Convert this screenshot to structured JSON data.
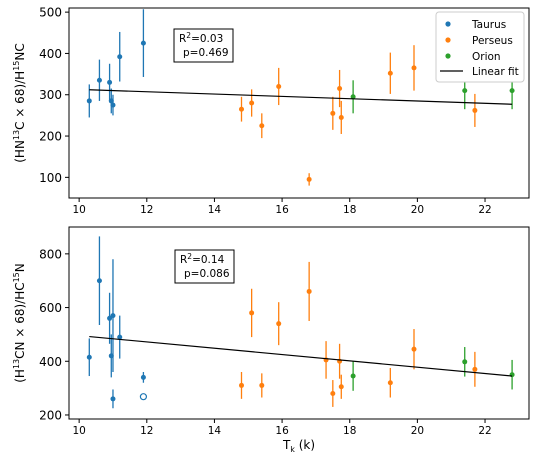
{
  "chart_data": [
    {
      "type": "scatter",
      "ylabel_parts": [
        "(HN",
        "13",
        "C × 68)/H",
        "15",
        "NC"
      ],
      "xlim": [
        9.7,
        23.3
      ],
      "ylim": [
        50,
        510
      ],
      "xticks": [
        10,
        12,
        14,
        16,
        18,
        20,
        22
      ],
      "yticks": [
        100,
        200,
        300,
        400,
        500
      ],
      "xtick_labels": [
        "10",
        "12",
        "14",
        "16",
        "18",
        "20",
        "22"
      ],
      "ytick_labels": [
        "100",
        "200",
        "300",
        "400",
        "500"
      ],
      "grid": false,
      "legend_position": "top-right",
      "legend": [
        "Taurus",
        "Perseus",
        "Orion",
        "Linear fit"
      ],
      "annotation": {
        "r2_prefix": "R",
        "r2_sup": "2",
        "r2_value": "=0.03",
        "p": "p=0.469"
      },
      "series": [
        {
          "name": "Taurus",
          "color": "#1f77b4",
          "points": [
            {
              "x": 10.3,
              "y": 285,
              "err": 40
            },
            {
              "x": 10.6,
              "y": 335,
              "err": 50
            },
            {
              "x": 10.9,
              "y": 330,
              "err": 45
            },
            {
              "x": 10.95,
              "y": 285,
              "err": 30
            },
            {
              "x": 11.0,
              "y": 275,
              "err": 25
            },
            {
              "x": 11.2,
              "y": 392,
              "err": 60
            },
            {
              "x": 11.9,
              "y": 425,
              "err": 82
            }
          ]
        },
        {
          "name": "Perseus",
          "color": "#ff7f0e",
          "points": [
            {
              "x": 14.8,
              "y": 265,
              "err": 30
            },
            {
              "x": 15.1,
              "y": 280,
              "err": 33
            },
            {
              "x": 15.4,
              "y": 225,
              "err": 30
            },
            {
              "x": 15.9,
              "y": 320,
              "err": 45
            },
            {
              "x": 16.8,
              "y": 95,
              "err": 15
            },
            {
              "x": 17.5,
              "y": 255,
              "err": 40
            },
            {
              "x": 17.7,
              "y": 315,
              "err": 45
            },
            {
              "x": 17.75,
              "y": 245,
              "err": 40
            },
            {
              "x": 19.2,
              "y": 352,
              "err": 50
            },
            {
              "x": 19.9,
              "y": 365,
              "err": 55
            },
            {
              "x": 21.7,
              "y": 262,
              "err": 40
            }
          ]
        },
        {
          "name": "Orion",
          "color": "#2ca02c",
          "points": [
            {
              "x": 18.1,
              "y": 295,
              "err": 40
            },
            {
              "x": 21.4,
              "y": 310,
              "err": 45
            },
            {
              "x": 22.8,
              "y": 310,
              "err": 45
            }
          ]
        }
      ],
      "fit": {
        "x": [
          10.3,
          22.8
        ],
        "y": [
          312,
          277
        ]
      }
    },
    {
      "type": "scatter",
      "ylabel_parts": [
        "(H",
        "13",
        "CN × 68)/HC",
        "15",
        "N"
      ],
      "xlabel": "T",
      "xlabel_sub": "k",
      "xlabel_unit": " (k)",
      "xlim": [
        9.7,
        23.3
      ],
      "ylim": [
        185,
        900
      ],
      "xticks": [
        10,
        12,
        14,
        16,
        18,
        20,
        22
      ],
      "yticks": [
        200,
        400,
        600,
        800
      ],
      "xtick_labels": [
        "10",
        "12",
        "14",
        "16",
        "18",
        "20",
        "22"
      ],
      "ytick_labels": [
        "200",
        "400",
        "600",
        "800"
      ],
      "grid": false,
      "annotation": {
        "r2_prefix": "R",
        "r2_sup": "2",
        "r2_value": "=0.14",
        "p": "p=0.086"
      },
      "open_points": [
        {
          "x": 11.9,
          "y": 268,
          "color": "#1f77b4"
        }
      ],
      "series": [
        {
          "name": "Taurus",
          "color": "#1f77b4",
          "points": [
            {
              "x": 10.3,
              "y": 415,
              "err": 70
            },
            {
              "x": 10.6,
              "y": 700,
              "err": 165
            },
            {
              "x": 10.9,
              "y": 560,
              "err": 95
            },
            {
              "x": 10.95,
              "y": 420,
              "err": 80
            },
            {
              "x": 11.0,
              "y": 570,
              "err": 210
            },
            {
              "x": 11.0,
              "y": 260,
              "err": 35
            },
            {
              "x": 11.2,
              "y": 490,
              "err": 80
            },
            {
              "x": 11.9,
              "y": 340,
              "err": 20
            }
          ]
        },
        {
          "name": "Perseus",
          "color": "#ff7f0e",
          "points": [
            {
              "x": 14.8,
              "y": 310,
              "err": 50
            },
            {
              "x": 15.1,
              "y": 580,
              "err": 90
            },
            {
              "x": 15.4,
              "y": 310,
              "err": 45
            },
            {
              "x": 15.9,
              "y": 540,
              "err": 80
            },
            {
              "x": 16.8,
              "y": 660,
              "err": 110
            },
            {
              "x": 17.3,
              "y": 405,
              "err": 70
            },
            {
              "x": 17.5,
              "y": 280,
              "err": 50
            },
            {
              "x": 17.7,
              "y": 400,
              "err": 65
            },
            {
              "x": 17.75,
              "y": 305,
              "err": 45
            },
            {
              "x": 19.2,
              "y": 320,
              "err": 55
            },
            {
              "x": 19.9,
              "y": 445,
              "err": 75
            },
            {
              "x": 21.7,
              "y": 370,
              "err": 65
            }
          ]
        },
        {
          "name": "Orion",
          "color": "#2ca02c",
          "points": [
            {
              "x": 18.1,
              "y": 345,
              "err": 55
            },
            {
              "x": 21.4,
              "y": 398,
              "err": 55
            },
            {
              "x": 22.8,
              "y": 350,
              "err": 55
            }
          ]
        }
      ],
      "fit": {
        "x": [
          10.3,
          22.8
        ],
        "y": [
          492,
          345
        ]
      }
    }
  ]
}
